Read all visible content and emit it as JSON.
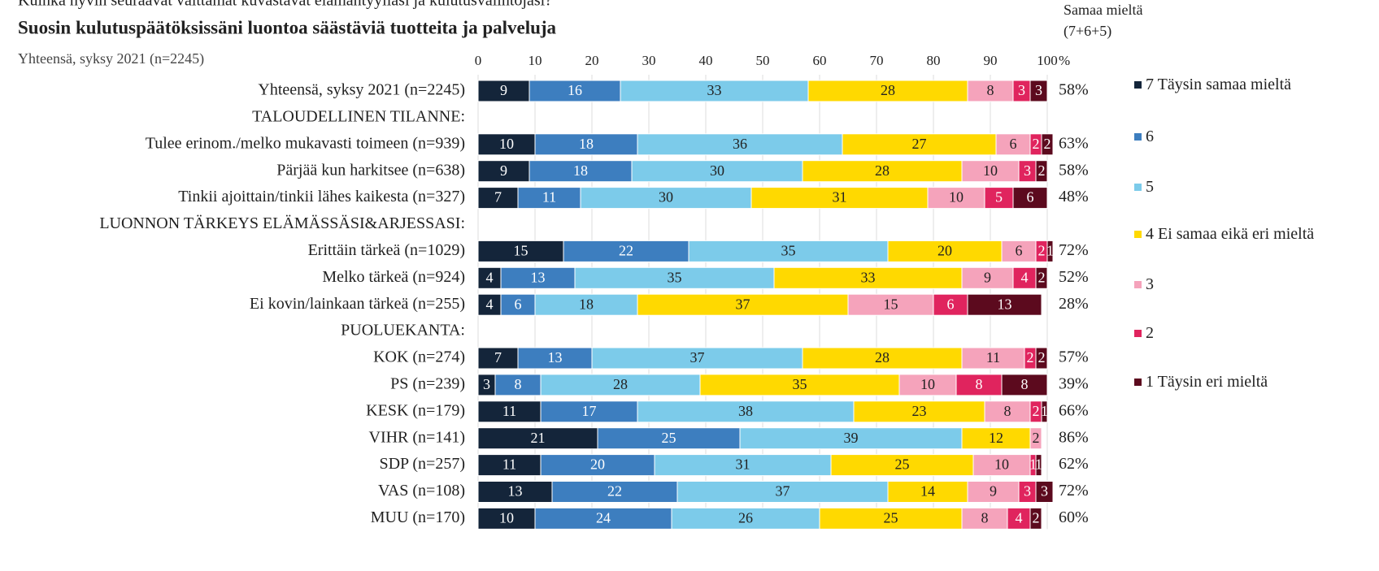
{
  "chart_data": {
    "type": "stacked-bar-horizontal",
    "question": "Kuinka hyvin seuraavat väittämät kuvastavat elämäntyyliäsi ja kulutusvalintojasi?",
    "title": "Suosin kulutuspäätöksissäni luontoa säästäviä tuotteita ja palveluja",
    "subtitle": "Yhteensä, syksy 2021 (n=2245)",
    "right_header": [
      "Samaa mieltä",
      "(7+6+5)"
    ],
    "x_unit": "%",
    "xlim": [
      0,
      100
    ],
    "xticks": [
      0,
      10,
      20,
      30,
      40,
      50,
      60,
      70,
      80,
      90,
      100
    ],
    "grid": true,
    "legend": "right",
    "categories": [
      "Yhteensä, syksy 2021 (n=2245)",
      "TALOUDELLINEN TILANNE:",
      "Tulee erinom./melko mukavasti toimeen (n=939)",
      "Pärjää kun harkitsee (n=638)",
      "Tinkii ajoittain/tinkii lähes kaikesta (n=327)",
      "LUONNON TÄRKEYS ELÄMÄSSÄSI&ARJESSASI:",
      "Erittäin tärkeä (n=1029)",
      "Melko tärkeä (n=924)",
      "Ei kovin/lainkaan tärkeä (n=255)",
      "PUOLUEKANTA:",
      "KOK (n=274)",
      "PS (n=239)",
      "KESK (n=179)",
      "VIHR (n=141)",
      "SDP (n=257)",
      "VAS (n=108)",
      "MUU (n=170)"
    ],
    "series": [
      {
        "name": "7 Täysin samaa mieltä",
        "color": "#14253a",
        "values": [
          9,
          null,
          10,
          9,
          7,
          null,
          15,
          4,
          4,
          null,
          7,
          3,
          11,
          21,
          11,
          13,
          10
        ]
      },
      {
        "name": "6",
        "color": "#3d7ebf",
        "values": [
          16,
          null,
          18,
          18,
          11,
          null,
          22,
          13,
          6,
          null,
          13,
          8,
          17,
          25,
          20,
          22,
          24
        ]
      },
      {
        "name": "5",
        "color": "#7ccbea",
        "values": [
          33,
          null,
          36,
          30,
          30,
          null,
          35,
          35,
          18,
          null,
          37,
          28,
          38,
          39,
          31,
          37,
          26
        ]
      },
      {
        "name": "4 Ei samaa eikä eri mieltä",
        "color": "#ffd900",
        "values": [
          28,
          null,
          27,
          28,
          31,
          null,
          20,
          33,
          37,
          null,
          28,
          35,
          23,
          12,
          25,
          14,
          25
        ]
      },
      {
        "name": "3",
        "color": "#f5a3bb",
        "values": [
          8,
          null,
          6,
          10,
          10,
          null,
          6,
          9,
          15,
          null,
          11,
          10,
          8,
          2,
          10,
          9,
          8
        ]
      },
      {
        "name": "2",
        "color": "#e0245e",
        "values": [
          3,
          null,
          2,
          3,
          5,
          null,
          2,
          4,
          6,
          null,
          2,
          8,
          2,
          null,
          1,
          3,
          4
        ]
      },
      {
        "name": "1 Täysin eri mieltä",
        "color": "#5c0a1e",
        "values": [
          3,
          null,
          2,
          2,
          6,
          null,
          1,
          2,
          13,
          null,
          2,
          8,
          1,
          null,
          1,
          3,
          2
        ]
      }
    ],
    "agree_totals": {
      "values": [
        58,
        null,
        63,
        58,
        48,
        null,
        72,
        52,
        28,
        null,
        57,
        39,
        66,
        86,
        62,
        72,
        60
      ],
      "value_labels": [
        "58%",
        null,
        "63%",
        "58%",
        "48%",
        null,
        "72%",
        "52%",
        "28%",
        null,
        "57%",
        "39%",
        "66%",
        "86%",
        "62%",
        "72%",
        "60%"
      ]
    }
  }
}
